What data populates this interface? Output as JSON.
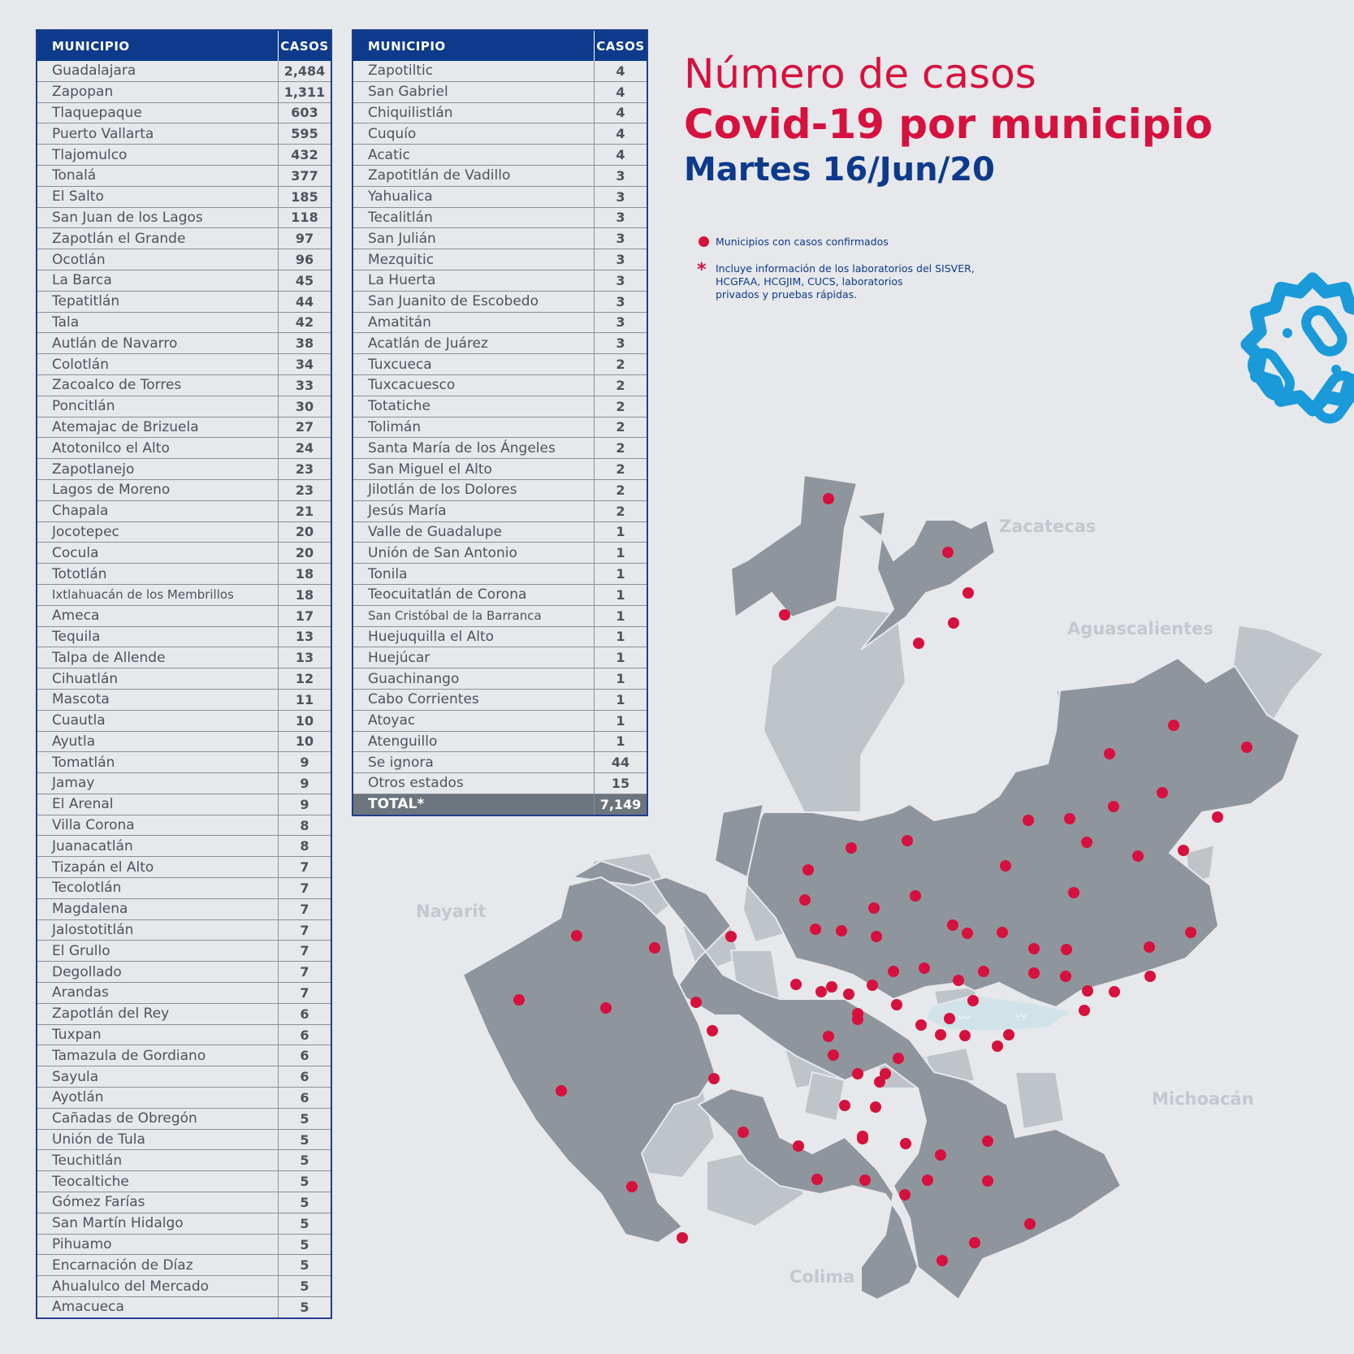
{
  "table1": {
    "header_municipio": "MUNICIPIO",
    "header_casos": "CASOS",
    "rows": [
      [
        "Guadalajara",
        "2,484"
      ],
      [
        "Zapopan",
        "1,311"
      ],
      [
        "Tlaquepaque",
        "603"
      ],
      [
        "Puerto Vallarta",
        "595"
      ],
      [
        "Tlajomulco",
        "432"
      ],
      [
        "Tonalá",
        "377"
      ],
      [
        "El Salto",
        "185"
      ],
      [
        "San Juan de los Lagos",
        "118"
      ],
      [
        "Zapotlán el Grande",
        "97"
      ],
      [
        "Ocotlán",
        "96"
      ],
      [
        "La Barca",
        "45"
      ],
      [
        "Tepatitlán",
        "44"
      ],
      [
        "Tala",
        "42"
      ],
      [
        "Autlán de Navarro",
        "38"
      ],
      [
        "Colotlán",
        "34"
      ],
      [
        "Zacoalco de Torres",
        "33"
      ],
      [
        "Poncitlán",
        "30"
      ],
      [
        "Atemajac de Brizuela",
        "27"
      ],
      [
        "Atotonilco el Alto",
        "24"
      ],
      [
        "Zapotlanejo",
        "23"
      ],
      [
        "Lagos de Moreno",
        "23"
      ],
      [
        "Chapala",
        "21"
      ],
      [
        "Jocotepec",
        "20"
      ],
      [
        "Cocula",
        "20"
      ],
      [
        "Tototlán",
        "18"
      ],
      [
        "Ixtlahuacán de los Membrillos",
        "18"
      ],
      [
        "Ameca",
        "17"
      ],
      [
        "Tequila",
        "13"
      ],
      [
        "Talpa de Allende",
        "13"
      ],
      [
        "Cihuatlán",
        "12"
      ],
      [
        "Mascota",
        "11"
      ],
      [
        "Cuautla",
        "10"
      ],
      [
        "Ayutla",
        "10"
      ],
      [
        "Tomatlán",
        "9"
      ],
      [
        "Jamay",
        "9"
      ],
      [
        "El Arenal",
        "9"
      ],
      [
        "Villa Corona",
        "8"
      ],
      [
        "Juanacatlán",
        "8"
      ],
      [
        "Tizapán el Alto",
        "7"
      ],
      [
        "Tecolotlán",
        "7"
      ],
      [
        "Magdalena",
        "7"
      ],
      [
        "Jalostotitlán",
        "7"
      ],
      [
        "El Grullo",
        "7"
      ],
      [
        "Degollado",
        "7"
      ],
      [
        "Arandas",
        "7"
      ],
      [
        "Zapotlán del Rey",
        "6"
      ],
      [
        "Tuxpan",
        "6"
      ],
      [
        "Tamazula de Gordiano",
        "6"
      ],
      [
        "Sayula",
        "6"
      ],
      [
        "Ayotlán",
        "6"
      ],
      [
        "Cañadas de Obregón",
        "5"
      ],
      [
        "Unión de Tula",
        "5"
      ],
      [
        "Teuchitlán",
        "5"
      ],
      [
        "Teocaltiche",
        "5"
      ],
      [
        "Gómez Farías",
        "5"
      ],
      [
        "San Martín Hidalgo",
        "5"
      ],
      [
        "Pihuamo",
        "5"
      ],
      [
        "Encarnación de Díaz",
        "5"
      ],
      [
        "Ahualulco del Mercado",
        "5"
      ],
      [
        "Amacueca",
        "5"
      ]
    ]
  },
  "table2": {
    "header_municipio": "MUNICIPIO",
    "header_casos": "CASOS",
    "rows": [
      [
        "Zapotiltic",
        "4"
      ],
      [
        "San Gabriel",
        "4"
      ],
      [
        "Chiquilistlán",
        "4"
      ],
      [
        "Cuquío",
        "4"
      ],
      [
        "Acatic",
        "4"
      ],
      [
        "Zapotitlán de Vadillo",
        "3"
      ],
      [
        "Yahualica",
        "3"
      ],
      [
        "Tecalitlán",
        "3"
      ],
      [
        "San Julián",
        "3"
      ],
      [
        "Mezquitic",
        "3"
      ],
      [
        "La Huerta",
        "3"
      ],
      [
        "San Juanito de Escobedo",
        "3"
      ],
      [
        "Amatitán",
        "3"
      ],
      [
        "Acatlán de Juárez",
        "3"
      ],
      [
        "Tuxcueca",
        "2"
      ],
      [
        "Tuxcacuesco",
        "2"
      ],
      [
        "Totatiche",
        "2"
      ],
      [
        "Tolimán",
        "2"
      ],
      [
        "Santa María de los Ángeles",
        "2"
      ],
      [
        "San Miguel el Alto",
        "2"
      ],
      [
        "Jilotlán de los Dolores",
        "2"
      ],
      [
        "Jesús María",
        "2"
      ],
      [
        "Valle de Guadalupe",
        "1"
      ],
      [
        "Unión de San Antonio",
        "1"
      ],
      [
        "Tonila",
        "1"
      ],
      [
        "Teocuitatlán de Corona",
        "1"
      ],
      [
        "San Cristóbal de la Barranca",
        "1"
      ],
      [
        "Huejuquilla el Alto",
        "1"
      ],
      [
        "Huejúcar",
        "1"
      ],
      [
        "Guachinango",
        "1"
      ],
      [
        "Cabo Corrientes",
        "1"
      ],
      [
        "Atoyac",
        "1"
      ],
      [
        "Atenguillo",
        "1"
      ],
      [
        "Se ignora",
        "44"
      ],
      [
        "Otros estados",
        "15"
      ]
    ],
    "total_label": "TOTAL*",
    "total_value": "7,149"
  },
  "title": {
    "line1": "Número de casos",
    "line2": "Covid-19 por municipio",
    "date": "Martes 16/Jun/20"
  },
  "legend": {
    "confirmed": "Municipios con casos confirmados",
    "note_line1": "Incluye información de los laboratorios del SISVER,",
    "note_line2": "HCGFAA, HCGJIM, CUCS, laboratorios",
    "note_line3": "privados y pruebas rápidas."
  },
  "map": {
    "states": [
      "Zacatecas",
      "Aguascalientes",
      "Nayarit",
      "Michoacán",
      "Colima"
    ],
    "colors": {
      "municipio_con_casos": "#8f959c",
      "municipio_sin_casos": "#bfc4c9",
      "dot": "#d6113e",
      "lake": "#cfe3e8"
    }
  },
  "colors": {
    "accent_red": "#d6113e",
    "navy": "#0d3a8b",
    "virus_blue": "#1a9ad9"
  }
}
